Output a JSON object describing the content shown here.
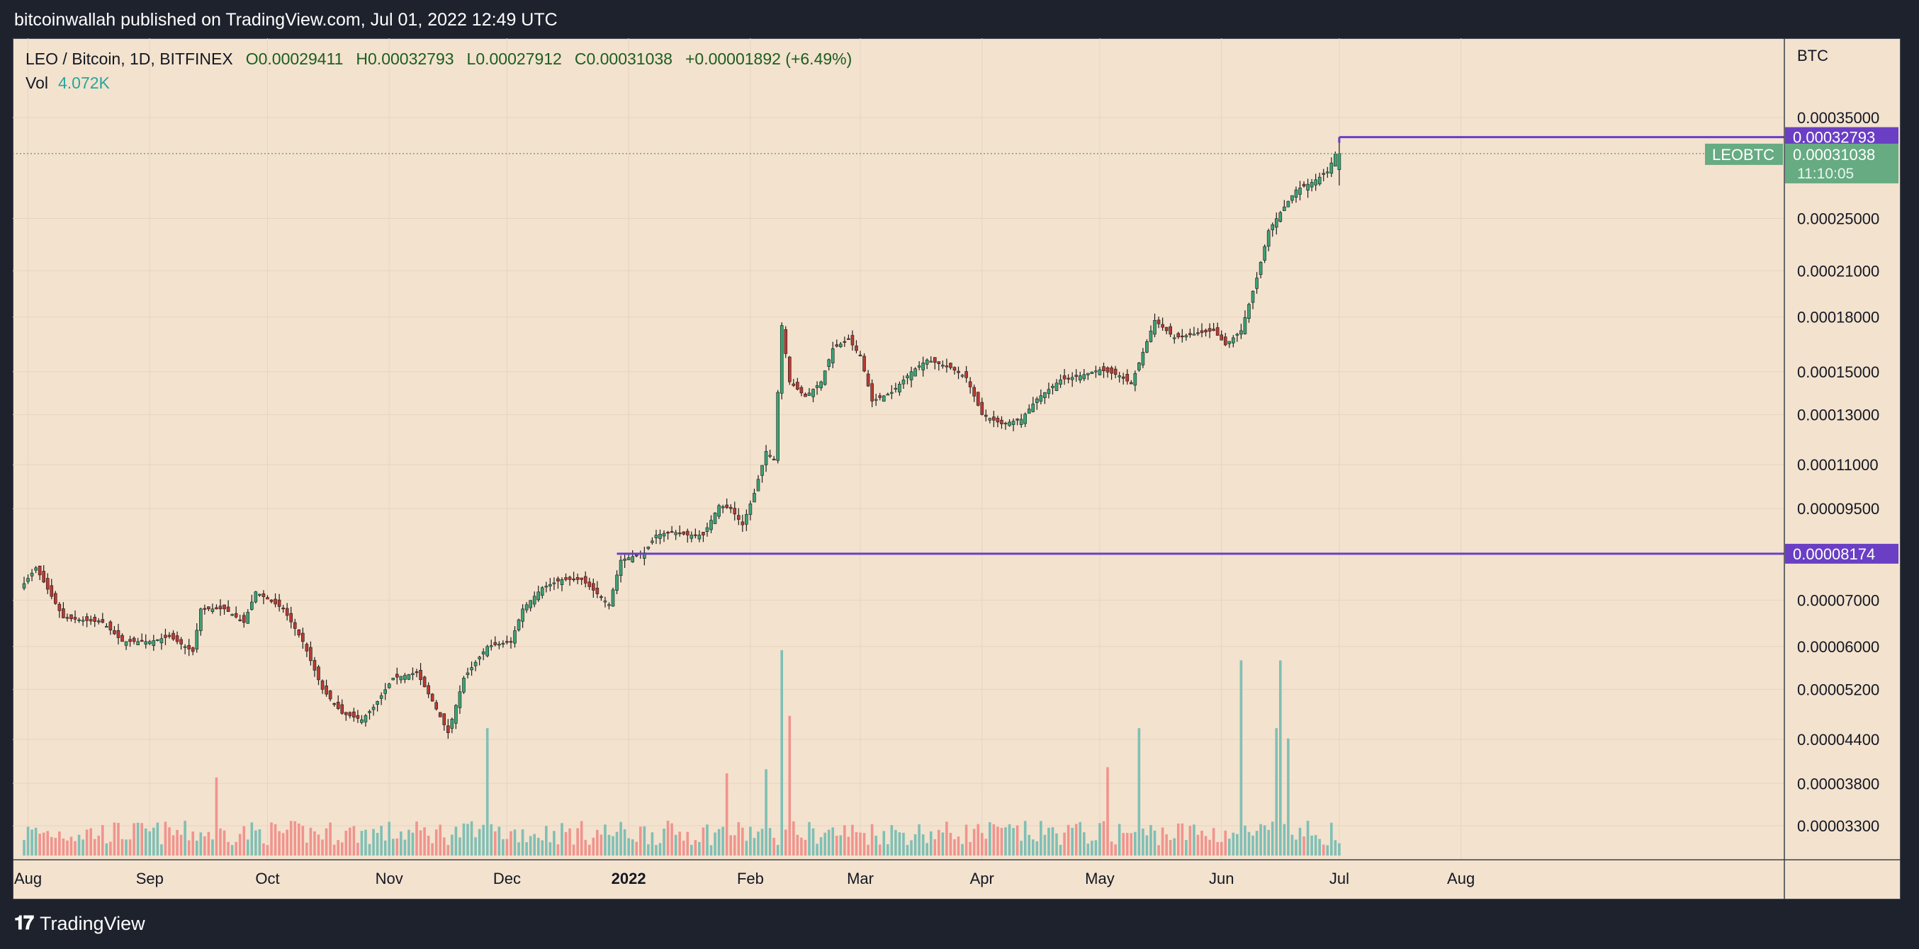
{
  "header": {
    "published": "bitcoinwallah published on TradingView.com, Jul 01, 2022 12:49 UTC"
  },
  "legend": {
    "symbol": "LEO / Bitcoin, 1D, BITFINEX",
    "open": "O0.00029411",
    "high": "H0.00032793",
    "low": "L0.00027912",
    "close": "C0.00031038",
    "change": "+0.00001892 (+6.49%)",
    "vol_label": "Vol",
    "vol_value": "4.072K"
  },
  "footer": {
    "brand": "TradingView",
    "logo": "tradingview-logo-icon"
  },
  "colors": {
    "up": "#26a69a",
    "down": "#ef5350",
    "level": "#6a3fc4",
    "price_tag": "#66ab82",
    "bg": "#f3e2ce"
  },
  "chart_data": {
    "type": "candlestick",
    "scale": "log",
    "axis_unit": "BTC",
    "x_ticks": [
      "Aug",
      "Sep",
      "Oct",
      "Nov",
      "Dec",
      "2022",
      "Feb",
      "Mar",
      "Apr",
      "May",
      "Jun",
      "Jul",
      "Aug"
    ],
    "y_ticks": [
      "0.00035000",
      "0.00025000",
      "0.00021000",
      "0.00018000",
      "0.00015000",
      "0.00013000",
      "0.00011000",
      "0.00009500",
      "0.00007000",
      "0.00006000",
      "0.00005200",
      "0.00004400",
      "0.00003800",
      "0.00003300"
    ],
    "levels": [
      {
        "label": "0.00032793",
        "price": 0.00032793
      },
      {
        "label": "0.00008174",
        "price": 8.174e-05
      }
    ],
    "last_price": {
      "symbol": "LEOBTC",
      "label": "0.00031038",
      "price": 0.00031038,
      "countdown": "11:10:05"
    },
    "anchors": [
      [
        "2021-07-31",
        7.4e-05
      ],
      [
        "2021-08-03",
        7.8e-05
      ],
      [
        "2021-08-10",
        6.6e-05
      ],
      [
        "2021-08-20",
        6.5e-05
      ],
      [
        "2021-08-25",
        6.1e-05
      ],
      [
        "2021-09-01",
        6.1e-05
      ],
      [
        "2021-09-06",
        6.2e-05
      ],
      [
        "2021-09-12",
        5.9e-05
      ],
      [
        "2021-09-14",
        6.8e-05
      ],
      [
        "2021-09-20",
        6.8e-05
      ],
      [
        "2021-09-25",
        6.5e-05
      ],
      [
        "2021-09-28",
        7.2e-05
      ],
      [
        "2021-10-05",
        6.8e-05
      ],
      [
        "2021-10-10",
        6.1e-05
      ],
      [
        "2021-10-15",
        5.2e-05
      ],
      [
        "2021-10-20",
        4.8e-05
      ],
      [
        "2021-10-25",
        4.7e-05
      ],
      [
        "2021-10-28",
        4.9e-05
      ],
      [
        "2021-11-02",
        5.4e-05
      ],
      [
        "2021-11-08",
        5.5e-05
      ],
      [
        "2021-11-12",
        5e-05
      ],
      [
        "2021-11-16",
        4.5e-05
      ],
      [
        "2021-11-20",
        5.4e-05
      ],
      [
        "2021-11-26",
        6e-05
      ],
      [
        "2021-12-02",
        6.1e-05
      ],
      [
        "2021-12-05",
        6.8e-05
      ],
      [
        "2021-12-10",
        7.3e-05
      ],
      [
        "2021-12-15",
        7.5e-05
      ],
      [
        "2021-12-20",
        7.5e-05
      ],
      [
        "2021-12-27",
        6.9e-05
      ],
      [
        "2021-12-30",
        8e-05
      ],
      [
        "2022-01-05",
        8.2e-05
      ],
      [
        "2022-01-08",
        8.7e-05
      ],
      [
        "2022-01-12",
        8.8e-05
      ],
      [
        "2022-01-16",
        8.7e-05
      ],
      [
        "2022-01-20",
        8.7e-05
      ],
      [
        "2022-01-24",
        9.6e-05
      ],
      [
        "2022-01-27",
        9.5e-05
      ],
      [
        "2022-01-30",
        9e-05
      ],
      [
        "2022-02-02",
        0.0001
      ],
      [
        "2022-02-05",
        0.000115
      ],
      [
        "2022-02-07",
        0.000112
      ],
      [
        "2022-02-09",
        0.000175
      ],
      [
        "2022-02-11",
        0.000145
      ],
      [
        "2022-02-15",
        0.000138
      ],
      [
        "2022-02-19",
        0.000145
      ],
      [
        "2022-02-22",
        0.000162
      ],
      [
        "2022-02-26",
        0.000167
      ],
      [
        "2022-03-01",
        0.000158
      ],
      [
        "2022-03-04",
        0.000136
      ],
      [
        "2022-03-09",
        0.00014
      ],
      [
        "2022-03-14",
        0.00015
      ],
      [
        "2022-03-18",
        0.000156
      ],
      [
        "2022-03-24",
        0.000152
      ],
      [
        "2022-03-28",
        0.000147
      ],
      [
        "2022-04-01",
        0.00013
      ],
      [
        "2022-04-06",
        0.000126
      ],
      [
        "2022-04-11",
        0.000128
      ],
      [
        "2022-04-15",
        0.000137
      ],
      [
        "2022-04-21",
        0.000146
      ],
      [
        "2022-04-26",
        0.000148
      ],
      [
        "2022-05-01",
        0.000151
      ],
      [
        "2022-05-06",
        0.000148
      ],
      [
        "2022-05-09",
        0.000144
      ],
      [
        "2022-05-12",
        0.00016
      ],
      [
        "2022-05-15",
        0.000178
      ],
      [
        "2022-05-20",
        0.000168
      ],
      [
        "2022-05-25",
        0.00017
      ],
      [
        "2022-05-30",
        0.000172
      ],
      [
        "2022-06-02",
        0.000164
      ],
      [
        "2022-06-06",
        0.000172
      ],
      [
        "2022-06-10",
        0.000205
      ],
      [
        "2022-06-13",
        0.00024
      ],
      [
        "2022-06-16",
        0.000255
      ],
      [
        "2022-06-20",
        0.000275
      ],
      [
        "2022-06-24",
        0.000282
      ],
      [
        "2022-06-28",
        0.000292
      ],
      [
        "2022-06-30",
        0.00031
      ]
    ],
    "last_candle": {
      "date": "2022-07-01",
      "open": 0.00029411,
      "high": 0.00032793,
      "low": 0.00027912,
      "close": 0.00031038
    },
    "volume_spikes": [
      [
        "2021-09-18",
        0.38
      ],
      [
        "2021-11-26",
        0.62
      ],
      [
        "2022-02-09",
        1.0
      ],
      [
        "2022-02-11",
        0.68
      ],
      [
        "2022-05-11",
        0.62
      ],
      [
        "2022-06-06",
        0.95
      ],
      [
        "2022-06-15",
        0.62
      ],
      [
        "2022-06-16",
        0.95
      ],
      [
        "2022-06-18",
        0.57
      ],
      [
        "2022-05-03",
        0.43
      ],
      [
        "2022-01-26",
        0.4
      ],
      [
        "2022-02-05",
        0.42
      ]
    ]
  }
}
